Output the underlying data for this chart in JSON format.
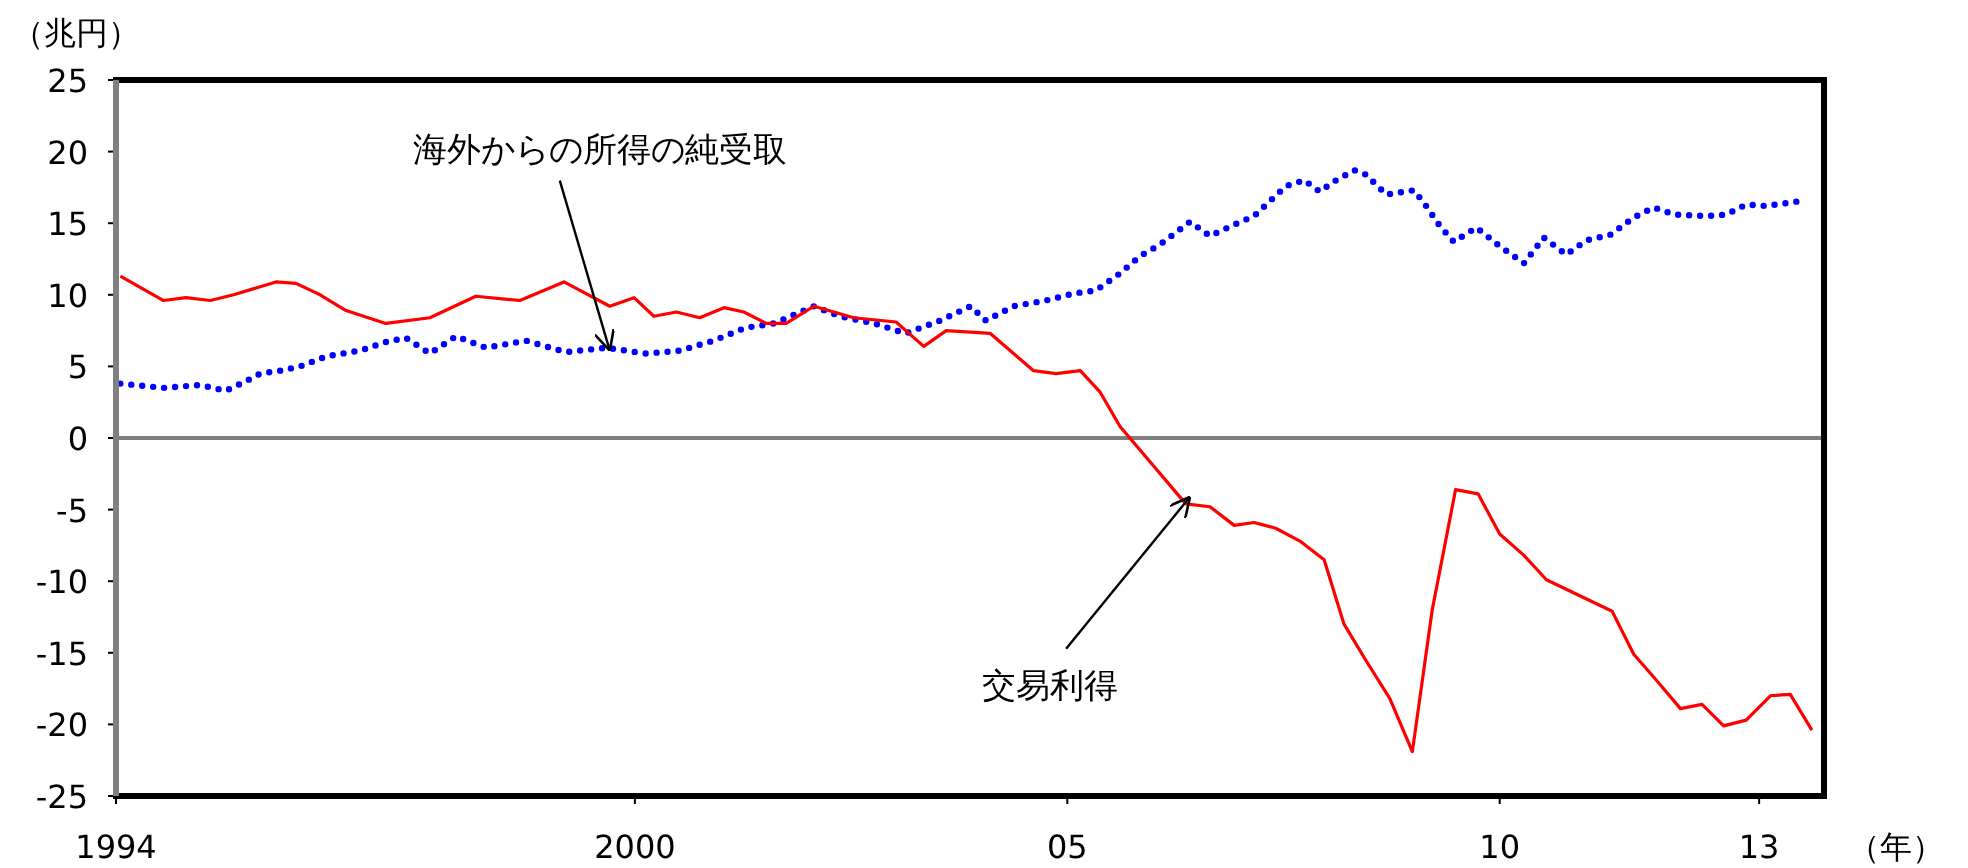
{
  "chart_data": {
    "type": "line",
    "ylabel": "（兆円）",
    "xlabel": "（年）",
    "xlim": [
      1994,
      2013.75
    ],
    "xticks": [
      1994,
      {
        "value": 2000,
        "label": "2000"
      },
      {
        "value": 2005,
        "label": "05"
      },
      {
        "value": 2010,
        "label": "10"
      },
      {
        "value": 2013,
        "label": "13"
      }
    ],
    "ylim": [
      -25,
      25
    ],
    "yticks": [
      -25,
      -20,
      -15,
      -10,
      -5,
      0,
      5,
      10,
      15,
      20,
      25
    ],
    "grid": false,
    "marker": "none",
    "ref_lines": [
      {
        "axis": "y",
        "value": 0,
        "color": "#808080"
      }
    ],
    "annotations": [
      {
        "text": "海外からの所得の純受取",
        "x": 1999.71,
        "y": 6.1
      },
      {
        "text": "交易利得",
        "x": 2006.42,
        "y": -4.1
      }
    ],
    "series": [
      {
        "color": "#0000ff",
        "line_style": "dotted",
        "x": [
          1994.05,
          1994.55,
          1994.97,
          1995.27,
          1995.48,
          1995.67,
          1995.9,
          1996.13,
          1996.43,
          1996.82,
          1997.12,
          1997.35,
          1997.63,
          1997.93,
          1998.28,
          1998.74,
          1999.2,
          1999.67,
          2000.13,
          2000.52,
          2000.91,
          2001.28,
          2001.61,
          2002.07,
          2002.37,
          2002.77,
          2003.13,
          2003.53,
          2003.88,
          2004.06,
          2004.38,
          2004.75,
          2005.08,
          2005.33,
          2005.61,
          2005.84,
          2006.07,
          2006.42,
          2006.65,
          2006.93,
          2007.16,
          2007.3,
          2007.53,
          2007.74,
          2007.92,
          2008.08,
          2008.32,
          2008.45,
          2008.69,
          2009.01,
          2009.15,
          2009.31,
          2009.47,
          2009.73,
          2010.0,
          2010.28,
          2010.51,
          2010.77,
          2011.0,
          2011.28,
          2011.55,
          2011.78,
          2012.02,
          2012.39,
          2012.62,
          2012.85,
          2013.08,
          2013.54
        ],
        "values": [
          3.8,
          3.5,
          3.7,
          3.3,
          3.9,
          4.5,
          4.7,
          5.0,
          5.7,
          6.1,
          6.7,
          7.0,
          5.9,
          7.1,
          6.3,
          6.8,
          6.0,
          6.3,
          5.9,
          6.1,
          6.8,
          7.7,
          8.0,
          9.2,
          8.5,
          8.0,
          7.3,
          8.2,
          9.2,
          8.2,
          9.2,
          9.6,
          10.1,
          10.3,
          11.5,
          12.7,
          13.5,
          15.1,
          14.1,
          14.9,
          15.5,
          16.3,
          17.6,
          18.0,
          17.2,
          17.9,
          18.7,
          18.4,
          17.0,
          17.3,
          16.2,
          14.8,
          13.7,
          14.7,
          13.4,
          12.2,
          14.0,
          12.8,
          13.8,
          14.2,
          15.4,
          16.1,
          15.6,
          15.5,
          15.6,
          16.3,
          16.2,
          16.6
        ]
      },
      {
        "color": "#ff0000",
        "line_style": "solid",
        "x": [
          1994.05,
          1994.55,
          1994.81,
          1995.09,
          1995.36,
          1995.85,
          1996.08,
          1996.36,
          1996.66,
          1997.12,
          1997.63,
          1998.16,
          1998.67,
          1999.18,
          1999.71,
          1999.99,
          2000.22,
          2000.48,
          2000.75,
          2001.03,
          2001.26,
          2001.52,
          2001.75,
          2002.07,
          2002.53,
          2003.02,
          2003.34,
          2003.6,
          2004.11,
          2004.61,
          2004.87,
          2005.15,
          2005.38,
          2005.61,
          2006.37,
          2006.65,
          2006.93,
          2007.16,
          2007.41,
          2007.69,
          2007.97,
          2008.2,
          2008.45,
          2008.73,
          2008.99,
          2009.22,
          2009.49,
          2009.75,
          2010.0,
          2010.28,
          2010.54,
          2011.3,
          2011.55,
          2011.81,
          2012.09,
          2012.34,
          2012.59,
          2012.85,
          2013.13,
          2013.36,
          2013.61
        ],
        "values": [
          11.3,
          9.6,
          9.8,
          9.6,
          10.0,
          10.9,
          10.8,
          10.0,
          8.9,
          8.0,
          8.4,
          9.9,
          9.6,
          10.9,
          9.2,
          9.8,
          8.5,
          8.8,
          8.4,
          9.1,
          8.8,
          8.0,
          8.0,
          9.2,
          8.4,
          8.1,
          6.4,
          7.5,
          7.3,
          4.7,
          4.5,
          4.7,
          3.2,
          0.8,
          -4.6,
          -4.8,
          -6.1,
          -5.9,
          -6.3,
          -7.2,
          -8.5,
          -13.0,
          -15.5,
          -18.2,
          -21.9,
          -12.0,
          -3.6,
          -3.9,
          -6.7,
          -8.2,
          -9.9,
          -12.1,
          -15.1,
          -16.9,
          -18.9,
          -18.6,
          -20.1,
          -19.7,
          -18.0,
          -17.9,
          -20.4
        ]
      }
    ]
  }
}
